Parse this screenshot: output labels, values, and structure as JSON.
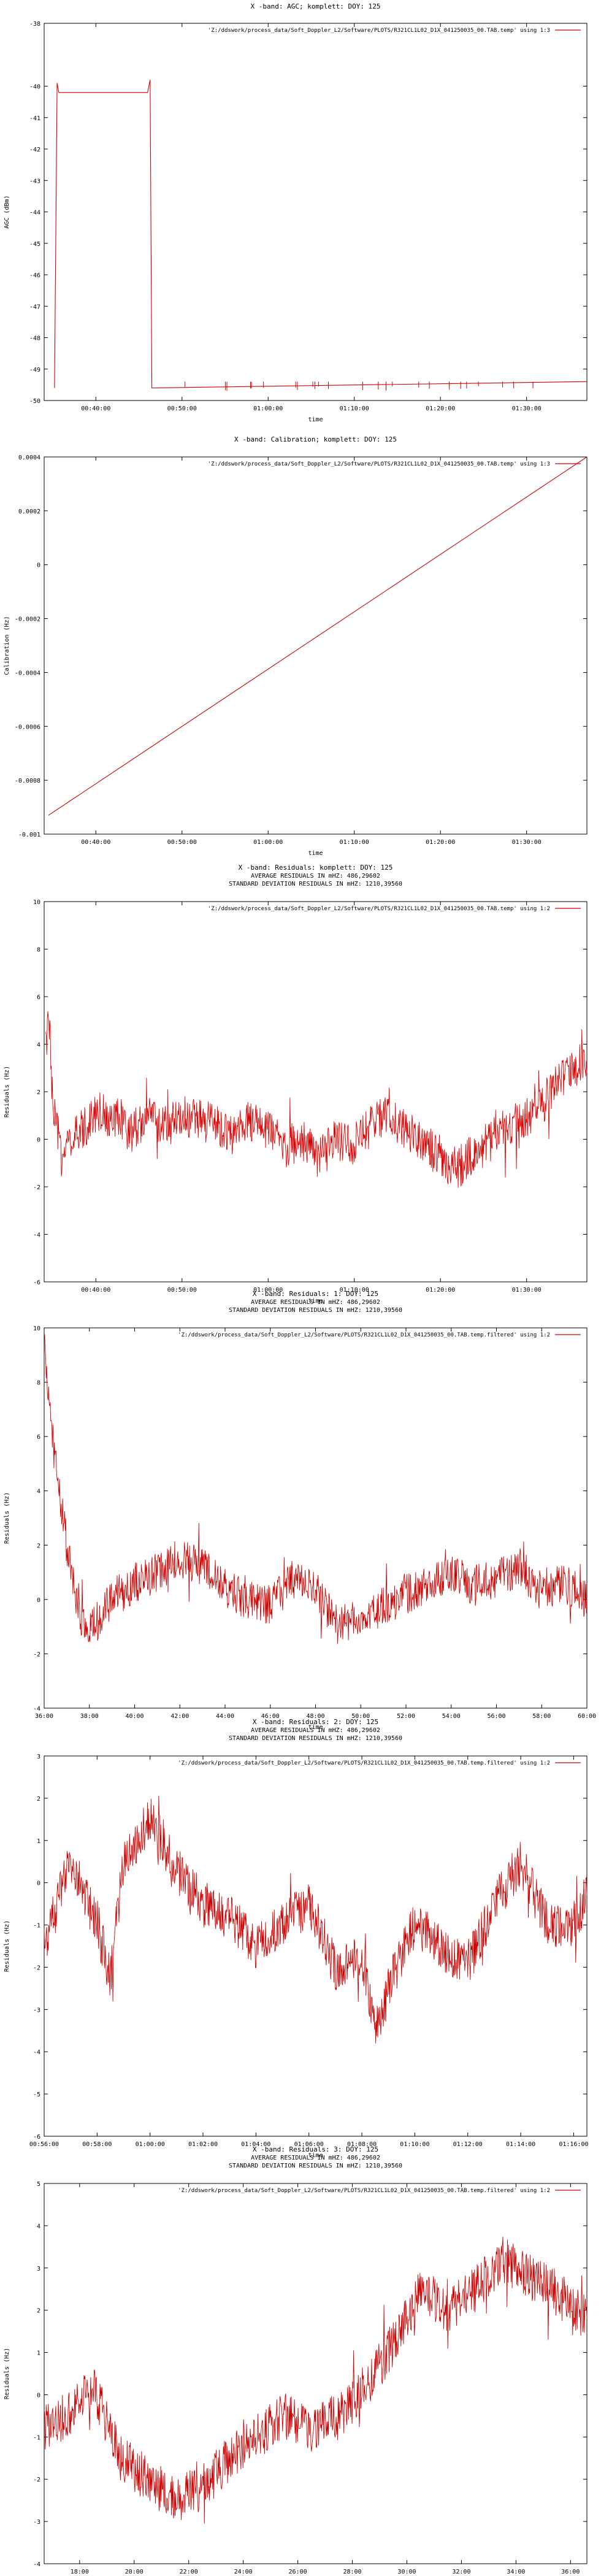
{
  "chart_data": [
    {
      "type": "line",
      "title": "X -band: AGC; komplett: DOY: 125",
      "subtitle": [],
      "xlabel": "time",
      "ylabel": "AGC (dBm)",
      "xlim": [
        34.0,
        97.0
      ],
      "ylim": [
        -50,
        -38
      ],
      "xtick_values": [
        40,
        50,
        60,
        70,
        80,
        90
      ],
      "xticks": [
        "00:40:00",
        "00:50:00",
        "01:00:00",
        "01:10:00",
        "01:20:00",
        "01:30:00"
      ],
      "yticks": [
        "-38",
        "-40",
        "-41",
        "-42",
        "-43",
        "-44",
        "-45",
        "-46",
        "-47",
        "-48",
        "-49",
        "-50"
      ],
      "ytick_values": [
        -38,
        -40,
        -41,
        -42,
        -43,
        -44,
        -45,
        -46,
        -47,
        -48,
        -49,
        -50
      ],
      "legend_position": "top-right",
      "series": [
        {
          "name": "'Z:/ddswork/process_data/Soft_Doppler_L2/Software/PLOTS/R321CL1L02_D1X_041250035_00.TAB.temp' using 1:3",
          "color": "#cc0000",
          "x": [
            35.2,
            35.5,
            35.7,
            46.0,
            46.3,
            46.5,
            97.0
          ],
          "y": [
            -49.6,
            -39.9,
            -40.2,
            -40.2,
            -39.8,
            -49.6,
            -49.4
          ]
        }
      ]
    },
    {
      "type": "line",
      "title": "X -band: Calibration; komplett: DOY: 125",
      "subtitle": [],
      "xlabel": "time",
      "ylabel": "Calibration (Hz)",
      "xlim": [
        34.0,
        97.0
      ],
      "ylim": [
        -0.001,
        0.0004
      ],
      "xtick_values": [
        40,
        50,
        60,
        70,
        80,
        90
      ],
      "xticks": [
        "00:40:00",
        "00:50:00",
        "01:00:00",
        "01:10:00",
        "01:20:00",
        "01:30:00"
      ],
      "yticks": [
        "0.0004",
        "0.0002",
        "0",
        "-0.0002",
        "-0.0004",
        "-0.0006",
        "-0.0008",
        "-0.001"
      ],
      "ytick_values": [
        0.0004,
        0.0002,
        0,
        -0.0002,
        -0.0004,
        -0.0006,
        -0.0008,
        -0.001
      ],
      "legend_position": "top-right",
      "series": [
        {
          "name": "'Z:/ddswork/process_data/Soft_Doppler_L2/Software/PLOTS/R321CL1L02_D1X_041250035_00.TAB.temp' using 1:3",
          "color": "#cc0000",
          "x": [
            34.5,
            97.0
          ],
          "y": [
            -0.00093,
            0.0004
          ]
        }
      ]
    },
    {
      "type": "line",
      "title": "X -band: Residuals: komplett: DOY: 125",
      "subtitle": [
        "AVERAGE RESIDUALS IN mHZ: 486,29602",
        "STANDARD DEVIATION RESIDUALS IN mHZ: 1210,39560"
      ],
      "xlabel": "time",
      "ylabel": "Residuals (Hz)",
      "xlim": [
        34.0,
        97.0
      ],
      "ylim": [
        -6,
        10
      ],
      "xtick_values": [
        40,
        50,
        60,
        70,
        80,
        90
      ],
      "xticks": [
        "00:40:00",
        "00:50:00",
        "01:00:00",
        "01:10:00",
        "01:20:00",
        "01:30:00"
      ],
      "yticks": [
        "10",
        "8",
        "6",
        "4",
        "2",
        "0",
        "-2",
        "-4",
        "-6"
      ],
      "ytick_values": [
        10,
        8,
        6,
        4,
        2,
        0,
        -2,
        -4,
        -6
      ],
      "legend_position": "top-right",
      "series": [
        {
          "name": "'Z:/ddswork/process_data/Soft_Doppler_L2/Software/PLOTS/R321CL1L02_D1X_041250035_00.TAB.temp' using 1:2",
          "color": "#dd0000",
          "x": [
            34.2,
            34.6,
            35.0,
            36.0,
            38.0,
            40.0,
            42.0,
            44.0,
            46.0,
            48.0,
            50.0,
            52.0,
            54.0,
            56.0,
            58.0,
            60.0,
            62.0,
            64.0,
            66.0,
            68.0,
            70.0,
            72.0,
            74.0,
            76.0,
            78.0,
            80.0,
            82.0,
            84.0,
            86.0,
            88.0,
            90.0,
            92.0,
            94.0,
            96.0,
            97.0
          ],
          "y": [
            4.0,
            5.0,
            1.2,
            -0.5,
            0.2,
            1.2,
            1.0,
            0.3,
            1.0,
            0.5,
            1.0,
            0.8,
            0.6,
            0.2,
            0.8,
            0.4,
            -0.3,
            0.0,
            -0.8,
            0.0,
            -0.2,
            0.6,
            1.0,
            0.4,
            0.0,
            -1.0,
            -1.2,
            -0.6,
            0.0,
            0.6,
            1.0,
            1.6,
            2.6,
            3.2,
            2.8
          ]
        }
      ]
    },
    {
      "type": "line",
      "title": "X -band: Residuals: 1: DOY: 125",
      "subtitle": [
        "AVERAGE RESIDUALS IN mHZ: 486,29602",
        "STANDARD DEVIATION RESIDUALS IN mHZ: 1210,39560"
      ],
      "xlabel": "time",
      "ylabel": "Residuals (Hz)",
      "xlim": [
        36.0,
        60.0
      ],
      "ylim": [
        -4,
        10
      ],
      "xtick_values": [
        36,
        38,
        40,
        42,
        44,
        46,
        48,
        50,
        52,
        54,
        56,
        58,
        60
      ],
      "xticks": [
        "36:00",
        "38:00",
        "40:00",
        "42:00",
        "44:00",
        "46:00",
        "48:00",
        "50:00",
        "52:00",
        "54:00",
        "56:00",
        "58:00",
        "60:00"
      ],
      "yticks": [
        "10",
        "8",
        "6",
        "4",
        "2",
        "0",
        "-2",
        "-4"
      ],
      "ytick_values": [
        10,
        8,
        6,
        4,
        2,
        0,
        -2,
        -4
      ],
      "legend_position": "top-right",
      "series": [
        {
          "name": "'Z:/ddswork/process_data/Soft_Doppler_L2/Software/PLOTS/R321CL1L02_D1X_041250035_00.TAB.temp.filtered' using 1:2",
          "color": "#cc0000",
          "x": [
            36.0,
            36.2,
            36.5,
            37.0,
            37.5,
            38.0,
            39.0,
            40.0,
            41.0,
            42.0,
            43.0,
            44.0,
            45.0,
            46.0,
            47.0,
            48.0,
            49.0,
            50.0,
            51.0,
            52.0,
            53.0,
            54.0,
            55.0,
            56.0,
            57.0,
            58.0,
            59.0,
            60.0
          ],
          "y": [
            9.2,
            7.5,
            5.0,
            2.0,
            -0.5,
            -1.2,
            0.0,
            0.6,
            1.0,
            1.5,
            1.2,
            0.4,
            0.0,
            -0.2,
            0.8,
            0.3,
            -1.0,
            -0.6,
            -0.3,
            0.2,
            0.6,
            1.0,
            0.5,
            0.8,
            1.2,
            0.3,
            0.6,
            0.0
          ]
        }
      ]
    },
    {
      "type": "line",
      "title": "X -band: Residuals: 2: DOY: 125",
      "subtitle": [
        "AVERAGE RESIDUALS IN mHZ: 486,29602",
        "STANDARD DEVIATION RESIDUALS IN mHZ: 1210,39560"
      ],
      "xlabel": "time",
      "ylabel": "Residuals (Hz)",
      "xlim": [
        56.0,
        76.5
      ],
      "ylim": [
        -6,
        3
      ],
      "xtick_values": [
        56,
        58,
        60,
        62,
        64,
        66,
        68,
        70,
        72,
        74,
        76
      ],
      "xticks": [
        "00:56:00",
        "00:58:00",
        "01:00:00",
        "01:02:00",
        "01:04:00",
        "01:06:00",
        "01:08:00",
        "01:10:00",
        "01:12:00",
        "01:14:00",
        "01:16:00"
      ],
      "yticks": [
        "3",
        "2",
        "1",
        "0",
        "-1",
        "-2",
        "-3",
        "-4",
        "-5",
        "-6"
      ],
      "ytick_values": [
        3,
        2,
        1,
        0,
        -1,
        -2,
        -3,
        -4,
        -5,
        -6
      ],
      "legend_position": "top-right",
      "series": [
        {
          "name": "'Z:/ddswork/process_data/Soft_Doppler_L2/Software/PLOTS/R321CL1L02_D1X_041250035_00.TAB.temp.filtered' using 1:2",
          "color": "#cc0000",
          "x": [
            56.0,
            57.0,
            58.0,
            58.5,
            59.0,
            60.0,
            61.0,
            62.0,
            63.0,
            64.0,
            65.0,
            66.0,
            67.0,
            68.0,
            68.6,
            69.0,
            70.0,
            71.0,
            72.0,
            73.0,
            74.0,
            75.0,
            76.0,
            76.5
          ],
          "y": [
            -1.5,
            0.5,
            -1.0,
            -2.2,
            0.5,
            1.5,
            0.3,
            -0.5,
            -0.8,
            -1.5,
            -1.0,
            -0.5,
            -2.0,
            -1.8,
            -3.5,
            -2.5,
            -1.0,
            -1.5,
            -2.0,
            -0.5,
            0.5,
            -1.0,
            -1.0,
            -0.3
          ]
        }
      ]
    },
    {
      "type": "line",
      "title": "X -band: Residuals: 3: DOY: 125",
      "subtitle": [
        "AVERAGE RESIDUALS IN mHZ: 486,29602",
        "STANDARD DEVIATION RESIDUALS IN mHZ: 1210,39560"
      ],
      "xlabel": "time",
      "ylabel": "Residuals (Hz)",
      "xlim": [
        16.7,
        36.6
      ],
      "ylim": [
        -4,
        5
      ],
      "xtick_values": [
        18,
        20,
        22,
        24,
        26,
        28,
        30,
        32,
        34,
        36
      ],
      "xticks": [
        "18:00",
        "20:00",
        "22:00",
        "24:00",
        "26:00",
        "28:00",
        "30:00",
        "32:00",
        "34:00",
        "36:00"
      ],
      "yticks": [
        "5",
        "4",
        "3",
        "2",
        "1",
        "0",
        "-1",
        "-2",
        "-3",
        "-4"
      ],
      "ytick_values": [
        5,
        4,
        3,
        2,
        1,
        0,
        -1,
        -2,
        -3,
        -4
      ],
      "legend_position": "top-right",
      "series": [
        {
          "name": "'Z:/ddswork/process_data/Soft_Doppler_L2/Software/PLOTS/R321CL1L02_D1X_041250035_00.TAB.temp.filtered' using 1:2",
          "color": "#cc0000",
          "x": [
            16.7,
            17.5,
            18.5,
            19.5,
            20.5,
            21.5,
            22.5,
            23.5,
            24.5,
            25.5,
            26.5,
            27.5,
            28.5,
            29.5,
            30.5,
            31.5,
            32.5,
            33.5,
            34.5,
            35.5,
            36.6
          ],
          "y": [
            -0.8,
            -0.5,
            0.2,
            -1.5,
            -2.0,
            -2.5,
            -2.2,
            -1.5,
            -1.0,
            -0.5,
            -0.8,
            -0.5,
            0.2,
            1.2,
            2.5,
            2.0,
            2.5,
            3.2,
            2.8,
            2.4,
            1.8
          ]
        }
      ]
    }
  ]
}
